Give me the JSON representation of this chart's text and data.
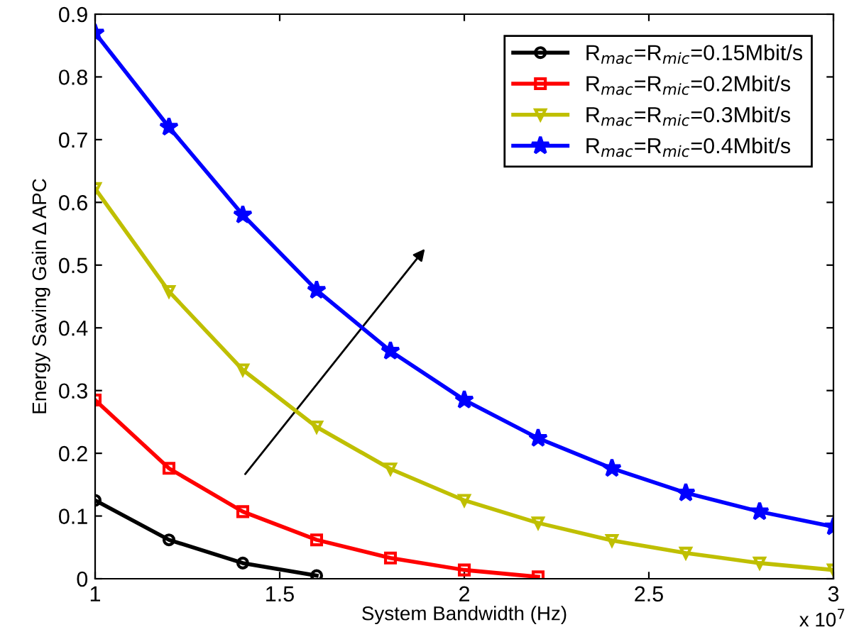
{
  "chart_data": {
    "type": "line",
    "xlabel": "System Bandwidth (Hz)",
    "ylabel": "Energy Saving Gain Δ APC",
    "x": [
      1,
      1.2,
      1.4,
      1.6,
      1.8,
      2,
      2.2,
      2.4,
      2.6,
      2.8,
      3
    ],
    "series": [
      {
        "name": "R$_{mac}$=R$_{mic}$=0.15Mbit/s",
        "color": "#000000",
        "marker": "circle",
        "values": [
          0.125,
          0.062,
          0.025,
          0.005,
          null,
          null,
          null,
          null,
          null,
          null,
          null
        ]
      },
      {
        "name": "R$_{mac}$=R$_{mic}$=0.2Mbit/s",
        "color": "#ff0000",
        "marker": "square",
        "values": [
          0.285,
          0.176,
          0.107,
          0.062,
          0.033,
          0.014,
          0.003,
          null,
          null,
          null,
          null
        ]
      },
      {
        "name": "R$_{mac}$=R$_{mic}$=0.3Mbit/s",
        "color": "#bfbf00",
        "marker": "triangle",
        "values": [
          0.622,
          0.458,
          0.333,
          0.242,
          0.175,
          0.125,
          0.089,
          0.061,
          0.041,
          0.025,
          0.014
        ]
      },
      {
        "name": "R$_{mac}$=R$_{mic}$=0.4Mbit/s",
        "color": "#0000ff",
        "marker": "star",
        "values": [
          0.87,
          0.72,
          0.58,
          0.46,
          0.363,
          0.285,
          0.224,
          0.176,
          0.137,
          0.107,
          0.083
        ]
      }
    ],
    "xlim": [
      1,
      3
    ],
    "xticks": [
      1,
      1.5,
      2,
      2.5,
      3
    ],
    "ylim": [
      0,
      0.9
    ],
    "yticks": [
      0,
      0.1,
      0.2,
      0.3,
      0.4,
      0.5,
      0.6,
      0.7,
      0.8,
      0.9
    ],
    "annotations": [
      "x 10$^{7}$"
    ],
    "legend": "top right",
    "grid": false,
    "line_style": "solid"
  }
}
